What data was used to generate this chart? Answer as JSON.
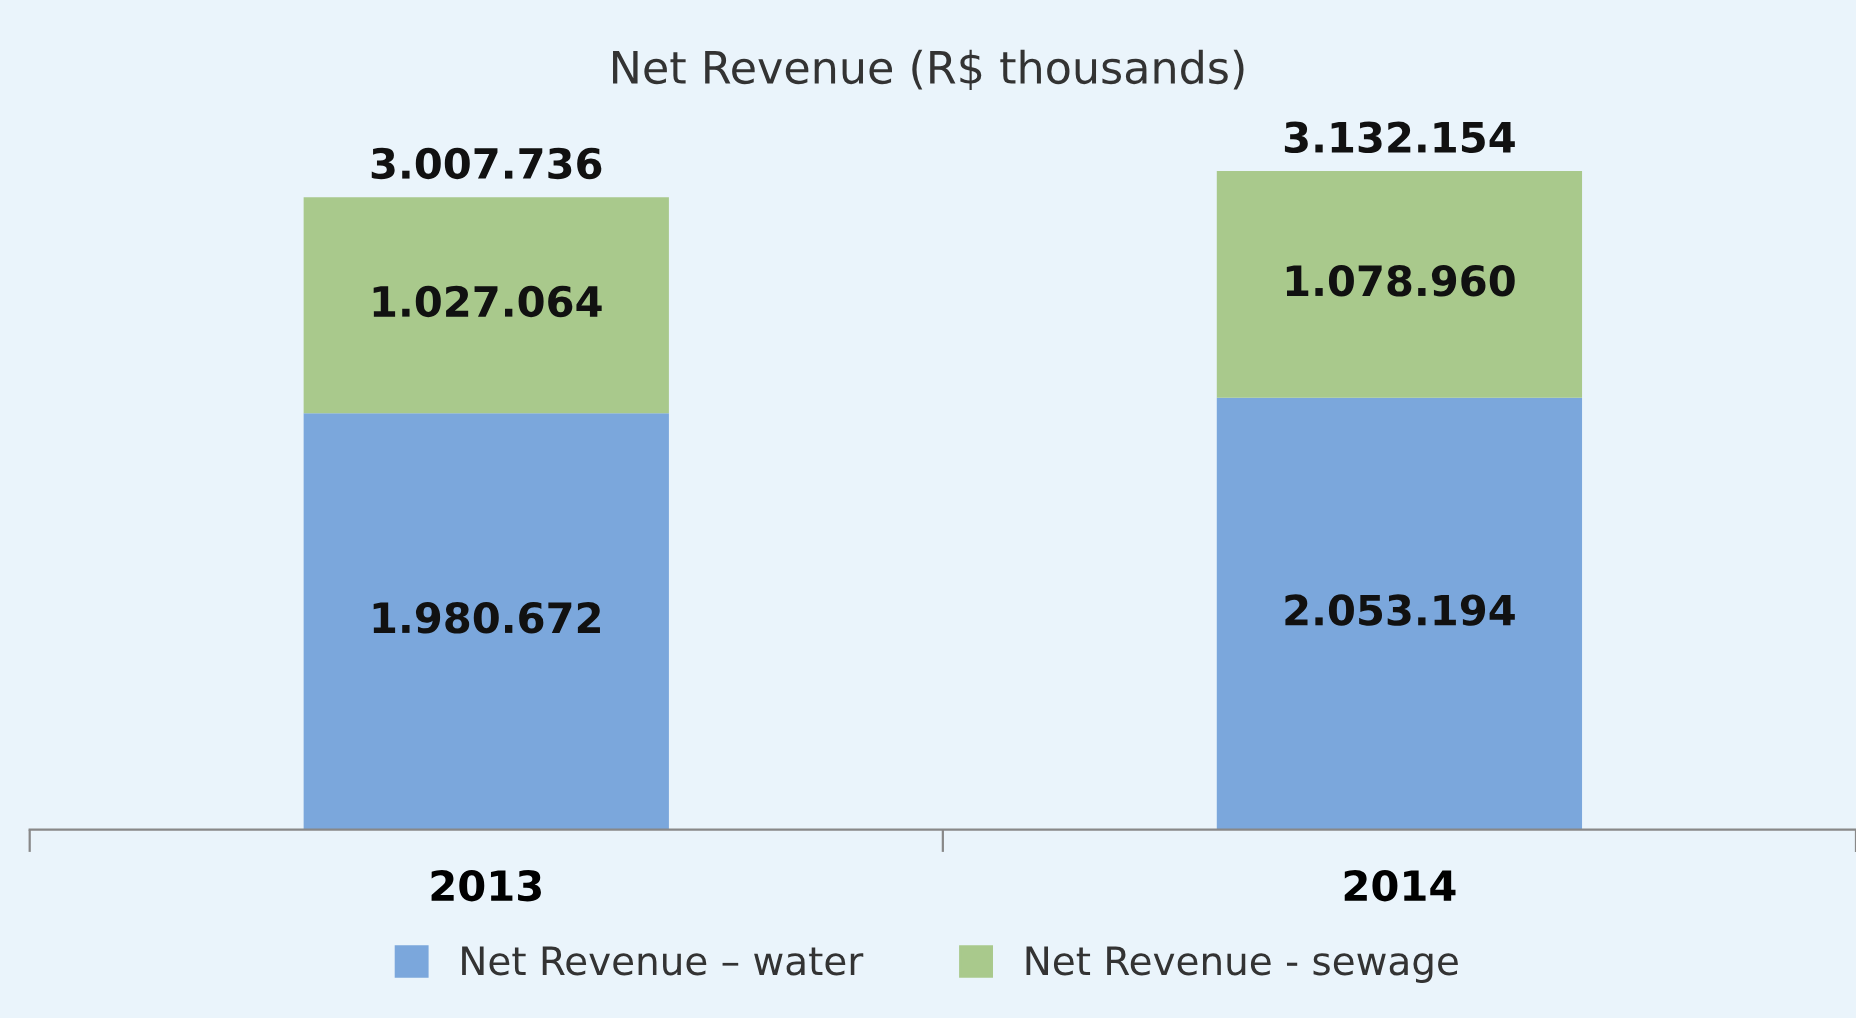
{
  "chart_data": {
    "type": "bar",
    "title": "Net Revenue (R$ thousands)",
    "categories": [
      "2013",
      "2014"
    ],
    "stacked": true,
    "series": [
      {
        "name": "Net Revenue – water",
        "color": "#7ba7dc",
        "values": [
          1980672,
          2053194
        ],
        "value_labels": [
          "1.980.672",
          "2.053.194"
        ]
      },
      {
        "name": "Net Revenue - sewage",
        "color": "#a9c98c",
        "values": [
          1027064,
          1078960
        ],
        "value_labels": [
          "1.027.064",
          "1.078.960"
        ]
      }
    ],
    "totals": [
      "3.007.736",
      "3.132.154"
    ],
    "legend": "bottom",
    "grid": false
  }
}
